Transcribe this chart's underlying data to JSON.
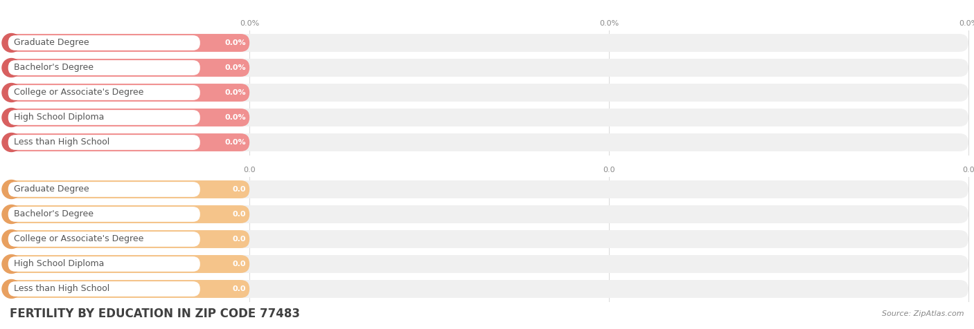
{
  "title": "FERTILITY BY EDUCATION IN ZIP CODE 77483",
  "source": "Source: ZipAtlas.com",
  "categories": [
    "Less than High School",
    "High School Diploma",
    "College or Associate's Degree",
    "Bachelor's Degree",
    "Graduate Degree"
  ],
  "top_values": [
    0.0,
    0.0,
    0.0,
    0.0,
    0.0
  ],
  "bottom_values": [
    0.0,
    0.0,
    0.0,
    0.0,
    0.0
  ],
  "top_bar_bg": "#f0f0f0",
  "top_bar_fill": "#f5c48a",
  "top_bar_circle": "#e8a060",
  "top_label_bg": "#ffffff",
  "top_value_label_format": "0.0",
  "bottom_bar_bg": "#f0f0f0",
  "bottom_bar_fill": "#f09090",
  "bottom_bar_circle": "#d86060",
  "bottom_label_bg": "#ffffff",
  "bottom_value_label_format": "0.0%",
  "top_axis_ticks": [
    "0.0",
    "0.0",
    "0.0"
  ],
  "bottom_axis_ticks": [
    "0.0%",
    "0.0%",
    "0.0%"
  ],
  "background_color": "#ffffff",
  "title_color": "#404040",
  "label_color": "#555555",
  "value_color": "#ffffff",
  "axis_color": "#888888",
  "grid_color": "#d8d8d8",
  "title_fontsize": 12,
  "label_fontsize": 9,
  "value_fontsize": 8,
  "axis_fontsize": 8,
  "source_fontsize": 8
}
